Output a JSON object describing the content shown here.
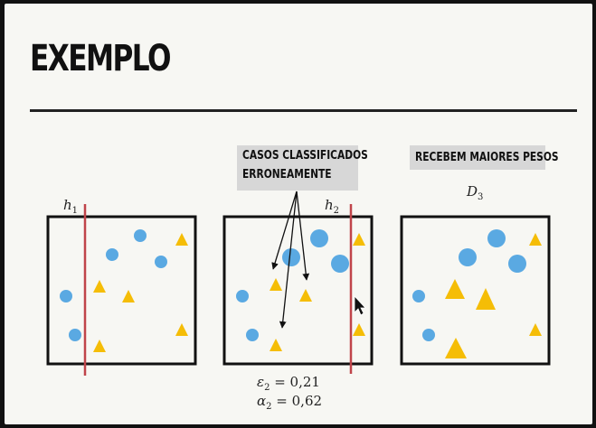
{
  "slide": {
    "title": "EXEMPLO",
    "callouts": {
      "misclassified_line1": "CASOS CLASSIFICADOS",
      "misclassified_line2": "ERRONEAMENTE",
      "higher_weights": "RECEBEM MAIORES PESOS"
    },
    "labels": {
      "h1_base": "h",
      "h1_sub": "1",
      "h2_base": "h",
      "h2_sub": "2",
      "d3_base": "D",
      "d3_sub": "3"
    },
    "stats": {
      "epsilon_symbol": "ε",
      "epsilon_sub": "2",
      "epsilon_value": "= 0,21",
      "alpha_symbol": "α",
      "alpha_sub": "2",
      "alpha_value": "= 0,62"
    }
  },
  "colors": {
    "circle": "#5aa9e2",
    "triangle": "#f5bd06",
    "separator": "#c0444a",
    "frame": "#111111"
  }
}
